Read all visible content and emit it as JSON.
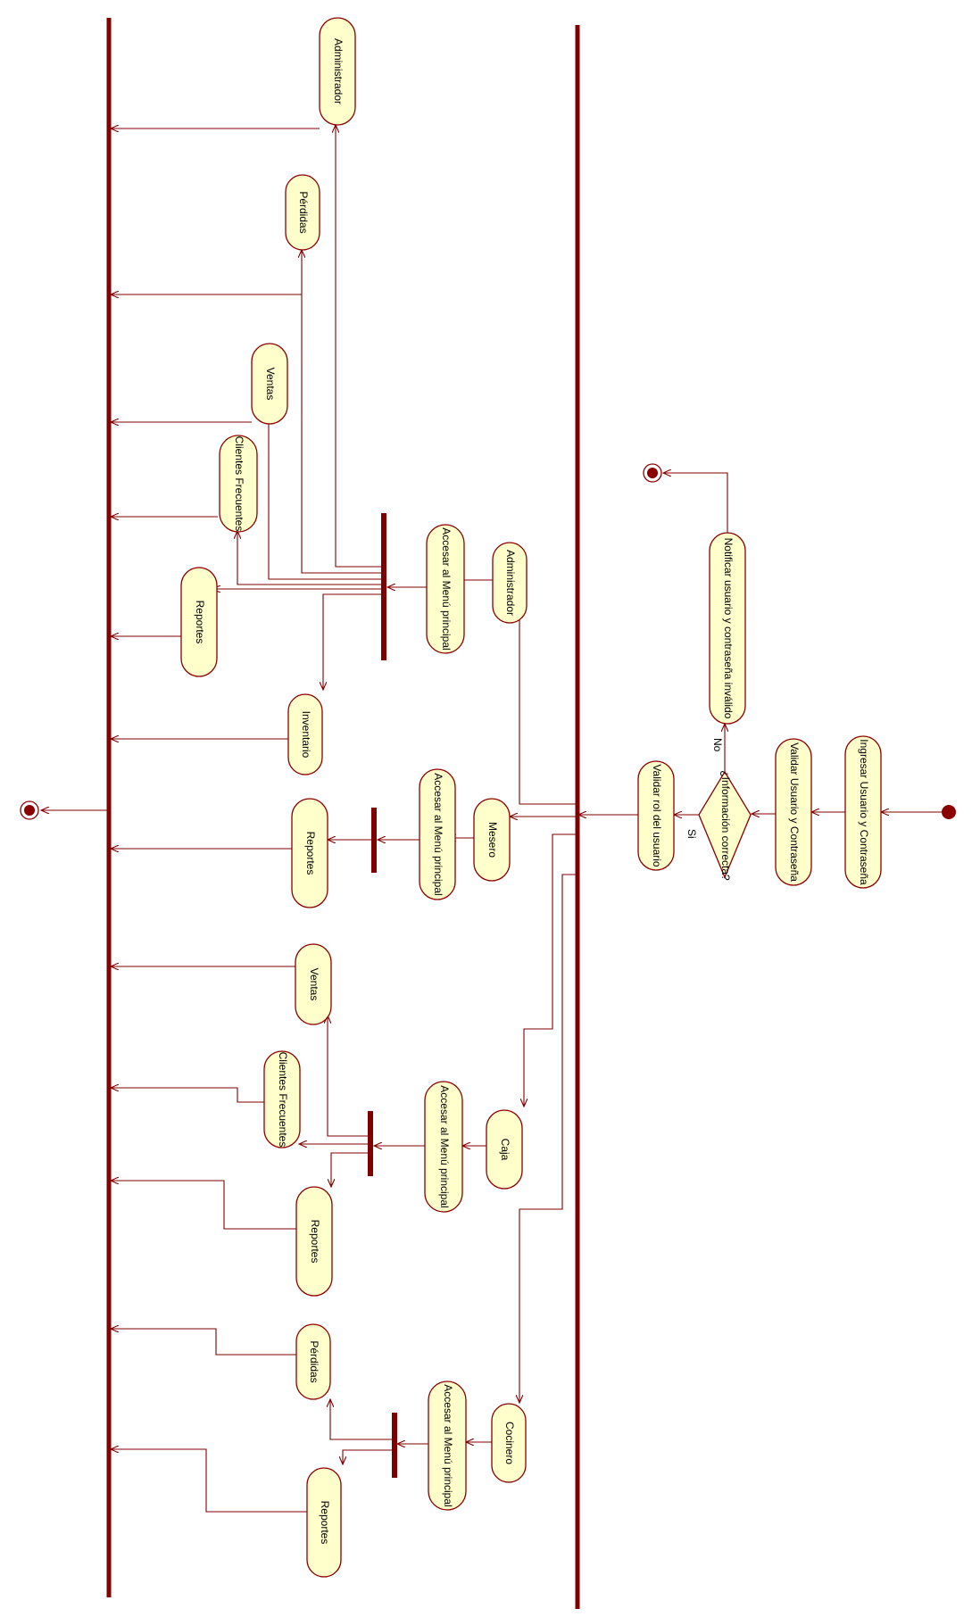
{
  "activities": {
    "admin_top": "Administrador",
    "perdidas_1": "Pérdidas",
    "ventas_1": "Ventas",
    "clientes_1": "Clientes Frecuentes",
    "reportes_1": "Reportes",
    "inventario": "Inventario",
    "acceder_admin": "Accesar al Menú principal",
    "administrador": "Administrador",
    "reportes_mesero": "Reportes",
    "acceder_mesero": "Accesar al Menú principal",
    "mesero": "Mesero",
    "ventas_caja": "Ventas",
    "clientes_caja": "Clientes Frecuentes",
    "reportes_caja": "Reportes",
    "acceder_caja": "Accesar al Menú principal",
    "caja": "Caja",
    "perdidas_cocina": "Pérdidas",
    "reportes_cocina": "Reportes",
    "acceder_cocina": "Accesar al Menú principal",
    "cocinero": "Cocinero",
    "notificar": "Notificar usuario y contraseña inválido",
    "validar_rol": "Validar rol del usuario",
    "informacion": "¿Información correcta?",
    "validar_usuario": "Validar Usuario y Contraseña",
    "ingresar": "Ingresar Usuario y Contraseña"
  },
  "guards": {
    "no": "No",
    "si": "Si"
  },
  "colors": {
    "node_fill": "#ffffcc",
    "line": "#800000"
  }
}
